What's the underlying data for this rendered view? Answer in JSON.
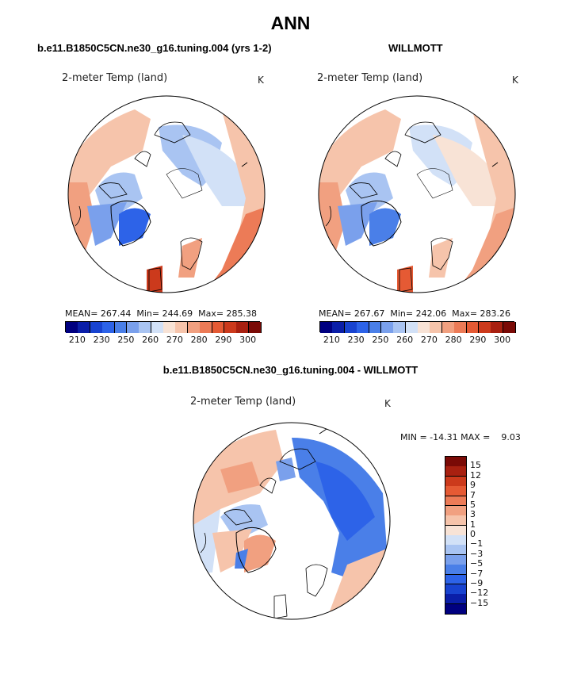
{
  "page": {
    "title": "ANN",
    "diff_title": "b.e11.B1850C5CN.ne30_g16.tuning.004 - WILLMOTT"
  },
  "colors": {
    "positive_scale": [
      "#000080",
      "#0a1ea8",
      "#1843d0",
      "#2d63e8",
      "#4a7fe8",
      "#7aa0ec",
      "#a9c4f2",
      "#d2e1f7",
      "#f8e3d6",
      "#f6c4ab",
      "#f1a080",
      "#ec7b57",
      "#e55a34",
      "#cc3a1c",
      "#a82010",
      "#7a0a06"
    ],
    "diff_scale": [
      "#000080",
      "#0a1ea8",
      "#1843d0",
      "#2d63e8",
      "#4a7fe8",
      "#7aa0ec",
      "#a9c4f2",
      "#d2e1f7",
      "#f8e3d6",
      "#f6c4ab",
      "#f1a080",
      "#ec7b57",
      "#e55a34",
      "#cc3a1c",
      "#a82010",
      "#7a0a06"
    ]
  },
  "panels": [
    {
      "case_title": "b.e11.B1850C5CN.ne30_g16.tuning.004 (yrs 1-2)",
      "var_title": "2-meter Temp (land)",
      "units": "K",
      "stats": "MEAN= 267.44  Min= 244.69  Max= 285.38",
      "colorbar_ticks": [
        "210",
        "230",
        "250",
        "260",
        "270",
        "280",
        "290",
        "300"
      ]
    },
    {
      "case_title": "WILLMOTT",
      "var_title": "2-meter Temp (land)",
      "units": "K",
      "stats": "MEAN= 267.67  Min= 242.06  Max= 283.26",
      "colorbar_ticks": [
        "210",
        "230",
        "250",
        "260",
        "270",
        "280",
        "290",
        "300"
      ]
    },
    {
      "var_title": "2-meter Temp (land)",
      "units": "K",
      "stats": "MIN = -14.31 MAX =    9.03",
      "colorbar_ticks": [
        "15",
        "12",
        "9",
        "7",
        "5",
        "3",
        "1",
        "0",
        "−1",
        "−3",
        "−5",
        "−7",
        "−9",
        "−12",
        "−15"
      ]
    }
  ],
  "chart_data": [
    {
      "type": "heatmap",
      "title": "b.e11.B1850C5CN.ne30_g16.tuning.004 (yrs 1-2)",
      "subtitle": "2-meter Temp (land)",
      "units": "K",
      "projection": "polar stereographic (north pole)",
      "mean": 267.44,
      "min": 244.69,
      "max": 285.38,
      "colorbar_levels": [
        210,
        230,
        250,
        260,
        270,
        280,
        290,
        300
      ]
    },
    {
      "type": "heatmap",
      "title": "WILLMOTT",
      "subtitle": "2-meter Temp (land)",
      "units": "K",
      "projection": "polar stereographic (north pole)",
      "mean": 267.67,
      "min": 242.06,
      "max": 283.26,
      "colorbar_levels": [
        210,
        230,
        250,
        260,
        270,
        280,
        290,
        300
      ]
    },
    {
      "type": "heatmap",
      "title": "b.e11.B1850C5CN.ne30_g16.tuning.004 - WILLMOTT",
      "subtitle": "2-meter Temp (land)",
      "units": "K",
      "projection": "polar stereographic (north pole)",
      "min": -14.31,
      "max": 9.03,
      "colorbar_levels": [
        15,
        12,
        9,
        7,
        5,
        3,
        1,
        0,
        -1,
        -3,
        -5,
        -7,
        -9,
        -12,
        -15
      ]
    }
  ]
}
